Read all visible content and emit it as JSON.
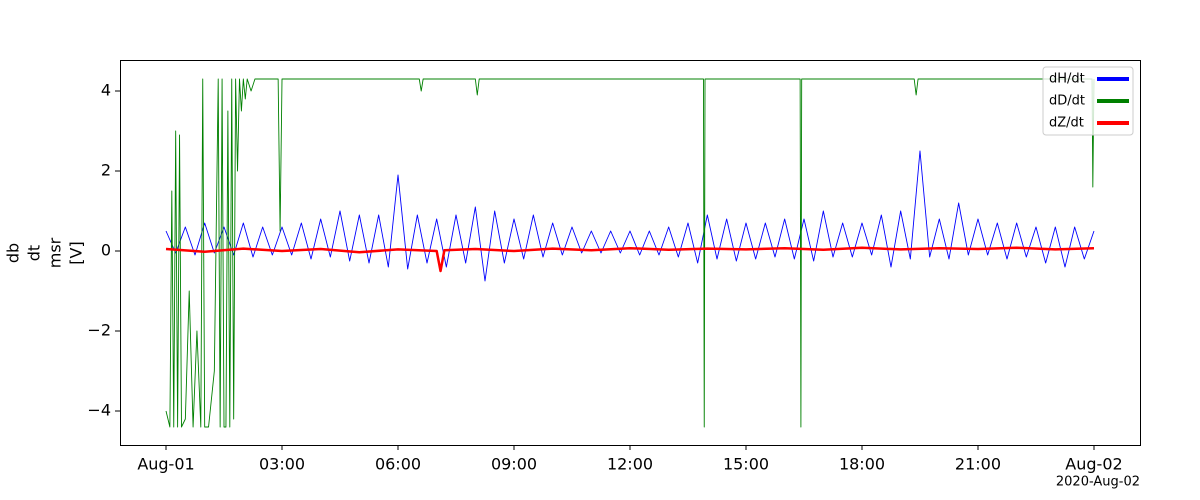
{
  "chart_data": {
    "type": "line",
    "ylabel": [
      "db",
      "dt",
      "msr",
      "[V]"
    ],
    "annotation": "2020-Aug-02",
    "xlim": [
      -1.19,
      25.19
    ],
    "xticks": [
      {
        "value": 0,
        "label": "Aug-01"
      },
      {
        "value": 3,
        "label": "03:00"
      },
      {
        "value": 6,
        "label": "06:00"
      },
      {
        "value": 9,
        "label": "09:00"
      },
      {
        "value": 12,
        "label": "12:00"
      },
      {
        "value": 15,
        "label": "15:00"
      },
      {
        "value": 18,
        "label": "18:00"
      },
      {
        "value": 21,
        "label": "21:00"
      },
      {
        "value": 24,
        "label": "Aug-02"
      }
    ],
    "ylim": [
      -4.85,
      4.775
    ],
    "yticks": [
      {
        "value": -4,
        "label": "−4"
      },
      {
        "value": -2,
        "label": "−2"
      },
      0,
      2,
      4
    ],
    "grid": false,
    "legend": "upper right",
    "series": [
      {
        "name": "dH/dt",
        "color": "#0000ff",
        "x": [
          0,
          0.25,
          0.5,
          0.75,
          1,
          1.25,
          1.5,
          1.75,
          2,
          2.25,
          2.5,
          2.75,
          3,
          3.25,
          3.5,
          3.75,
          4,
          4.25,
          4.5,
          4.75,
          5,
          5.25,
          5.5,
          5.75,
          6,
          6.25,
          6.5,
          6.75,
          7,
          7.25,
          7.5,
          7.75,
          8,
          8.25,
          8.5,
          8.75,
          9,
          9.25,
          9.5,
          9.75,
          10,
          10.25,
          10.5,
          10.75,
          11,
          11.25,
          11.5,
          11.75,
          12,
          12.25,
          12.5,
          12.75,
          13,
          13.25,
          13.5,
          13.75,
          14,
          14.25,
          14.5,
          14.75,
          15,
          15.25,
          15.5,
          15.75,
          16,
          16.25,
          16.5,
          16.75,
          17,
          17.25,
          17.5,
          17.75,
          18,
          18.25,
          18.5,
          18.75,
          19,
          19.25,
          19.5,
          19.75,
          20,
          20.25,
          20.5,
          20.75,
          21,
          21.25,
          21.5,
          21.75,
          22,
          22.25,
          22.5,
          22.75,
          23,
          23.25,
          23.5,
          23.75,
          24
        ],
        "values": [
          0.5,
          -0.05,
          0.6,
          -0.1,
          0.7,
          -0.05,
          0.6,
          -0.1,
          0.7,
          -0.15,
          0.6,
          -0.1,
          0.6,
          -0.1,
          0.7,
          -0.2,
          0.8,
          -0.15,
          1.0,
          -0.25,
          0.9,
          -0.3,
          0.9,
          -0.4,
          1.9,
          -0.45,
          0.9,
          -0.3,
          0.8,
          -0.4,
          0.9,
          -0.3,
          1.1,
          -0.75,
          1.0,
          -0.3,
          0.8,
          -0.2,
          0.9,
          -0.15,
          0.7,
          -0.1,
          0.6,
          -0.05,
          0.5,
          -0.05,
          0.5,
          -0.05,
          0.5,
          -0.1,
          0.5,
          -0.1,
          0.6,
          -0.15,
          0.7,
          -0.3,
          0.9,
          -0.2,
          0.8,
          -0.25,
          0.7,
          -0.2,
          0.7,
          -0.15,
          0.8,
          -0.2,
          0.8,
          -0.25,
          1.0,
          -0.15,
          0.7,
          -0.15,
          0.7,
          -0.1,
          0.9,
          -0.4,
          1.0,
          -0.2,
          2.5,
          -0.15,
          0.8,
          -0.2,
          1.2,
          -0.1,
          0.8,
          -0.1,
          0.7,
          -0.2,
          0.7,
          -0.15,
          0.6,
          -0.3,
          0.6,
          -0.4,
          0.6,
          -0.2,
          0.5
        ]
      },
      {
        "name": "dD/dt",
        "color": "#008000",
        "x": [
          0,
          0.1,
          0.15,
          0.2,
          0.25,
          0.3,
          0.35,
          0.4,
          0.5,
          0.6,
          0.7,
          0.8,
          0.9,
          0.95,
          1.0,
          1.1,
          1.25,
          1.35,
          1.4,
          1.45,
          1.5,
          1.55,
          1.6,
          1.65,
          1.7,
          1.75,
          1.8,
          1.85,
          1.9,
          1.95,
          2.0,
          2.05,
          2.1,
          2.2,
          2.3,
          2.5,
          2.9,
          2.95,
          3.0,
          6.55,
          6.6,
          6.65,
          8.0,
          8.05,
          8.1,
          13.9,
          13.92,
          13.94,
          16.4,
          16.42,
          16.44,
          19.35,
          19.4,
          19.45,
          23.95,
          23.97,
          24
        ],
        "values": [
          -4.0,
          -4.4,
          1.5,
          -4.4,
          3.0,
          -4.4,
          2.9,
          -4.4,
          -4.2,
          -1.0,
          -4.4,
          -2.0,
          -4.4,
          4.3,
          -4.4,
          -4.4,
          -3.0,
          4.3,
          -4.4,
          4.3,
          -4.4,
          -4.4,
          3.5,
          -4.4,
          4.3,
          -4.2,
          4.3,
          2.0,
          4.3,
          3.5,
          4.3,
          3.8,
          4.3,
          4.0,
          4.3,
          4.3,
          4.3,
          0.5,
          4.3,
          4.3,
          4.0,
          4.3,
          4.3,
          3.9,
          4.3,
          4.3,
          -4.4,
          4.3,
          4.3,
          -4.4,
          4.3,
          4.3,
          3.9,
          4.3,
          4.3,
          1.6,
          4.3
        ]
      },
      {
        "name": "dZ/dt",
        "color": "#ff0000",
        "x": [
          0,
          1,
          2,
          3,
          4,
          5,
          6,
          7,
          7.1,
          7.2,
          8,
          9,
          10,
          11,
          12,
          13,
          14,
          15,
          16,
          17,
          18,
          19,
          20,
          21,
          22,
          23,
          24
        ],
        "values": [
          0.05,
          -0.02,
          0.06,
          0.0,
          0.05,
          -0.03,
          0.04,
          0.0,
          -0.5,
          0.02,
          0.05,
          0.0,
          0.06,
          0.02,
          0.07,
          0.03,
          0.06,
          0.04,
          0.07,
          0.03,
          0.08,
          0.04,
          0.07,
          0.05,
          0.08,
          0.04,
          0.07
        ]
      }
    ]
  }
}
